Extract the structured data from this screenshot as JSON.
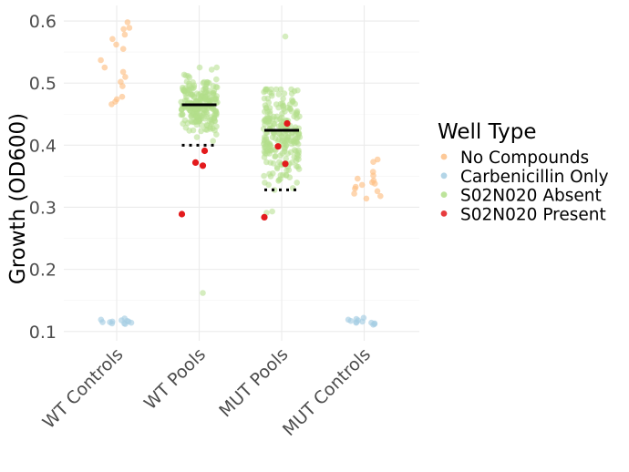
{
  "chart_data": {
    "type": "scatter",
    "subtype": "jitter-strip",
    "title": "",
    "xlabel": "",
    "ylabel": "Growth (OD600)",
    "ylim": [
      0.085,
      0.625
    ],
    "yticks": [
      0.1,
      0.2,
      0.3,
      0.4,
      0.5,
      0.6
    ],
    "ytick_labels": [
      "0.1",
      "0.2",
      "0.3",
      "0.4",
      "0.5",
      "0.6"
    ],
    "categories": [
      "WT Controls",
      "WT Pools",
      "MUT Pools",
      "MUT Controls"
    ],
    "legend": {
      "title": "Well Type",
      "position": "right",
      "entries": [
        {
          "label": "No Compounds",
          "color": "#fdc086"
        },
        {
          "label": "Carbenicillin Only",
          "color": "#a6cee3"
        },
        {
          "label": "S02N020 Absent",
          "color": "#b2df8a"
        },
        {
          "label": "S02N020 Present",
          "color": "#e31a1c"
        }
      ]
    },
    "series": [
      {
        "name": "No Compounds",
        "color": "#fdc086",
        "points": [
          {
            "category": "WT Controls",
            "values": [
              0.598,
              0.589,
              0.587,
              0.578,
              0.571,
              0.562,
              0.555,
              0.537,
              0.525,
              0.518,
              0.51,
              0.502,
              0.495,
              0.478,
              0.474,
              0.47,
              0.466
            ]
          },
          {
            "category": "MUT Controls",
            "values": [
              0.377,
              0.373,
              0.357,
              0.351,
              0.346,
              0.343,
              0.34,
              0.338,
              0.336,
              0.333,
              0.33,
              0.326,
              0.322,
              0.318,
              0.314
            ]
          }
        ]
      },
      {
        "name": "Carbenicillin Only",
        "color": "#a6cee3",
        "points": [
          {
            "category": "WT Controls",
            "values": [
              0.121,
              0.119,
              0.118,
              0.117,
              0.116,
              0.116,
              0.115,
              0.115,
              0.114,
              0.113,
              0.113,
              0.112
            ]
          },
          {
            "category": "MUT Controls",
            "values": [
              0.122,
              0.12,
              0.119,
              0.118,
              0.117,
              0.116,
              0.115,
              0.114,
              0.114,
              0.113,
              0.112,
              0.111
            ]
          }
        ]
      },
      {
        "name": "S02N020 Absent",
        "color": "#b2df8a",
        "points": [
          {
            "category": "WT Pools",
            "center": 0.465,
            "sd": 0.024,
            "n": 230,
            "min": 0.4,
            "max": 0.525,
            "outliers": [
              0.162
            ]
          },
          {
            "category": "MUT Pools",
            "center": 0.42,
            "sd": 0.038,
            "n": 230,
            "min": 0.27,
            "max": 0.49,
            "outliers": [
              0.575
            ]
          }
        ]
      },
      {
        "name": "S02N020 Present",
        "color": "#e31a1c",
        "points": [
          {
            "category": "WT Pools",
            "values": [
              0.391,
              0.372,
              0.367,
              0.289
            ]
          },
          {
            "category": "MUT Pools",
            "values": [
              0.435,
              0.398,
              0.37,
              0.284
            ]
          }
        ]
      }
    ],
    "reference_lines": [
      {
        "category": "WT Pools",
        "style": "solid",
        "value": 0.465,
        "meaning": "mean"
      },
      {
        "category": "WT Pools",
        "style": "dotted",
        "value": 0.4,
        "meaning": "threshold"
      },
      {
        "category": "MUT Pools",
        "style": "solid",
        "value": 0.424,
        "meaning": "mean"
      },
      {
        "category": "MUT Pools",
        "style": "dotted",
        "value": 0.328,
        "meaning": "threshold"
      }
    ]
  }
}
